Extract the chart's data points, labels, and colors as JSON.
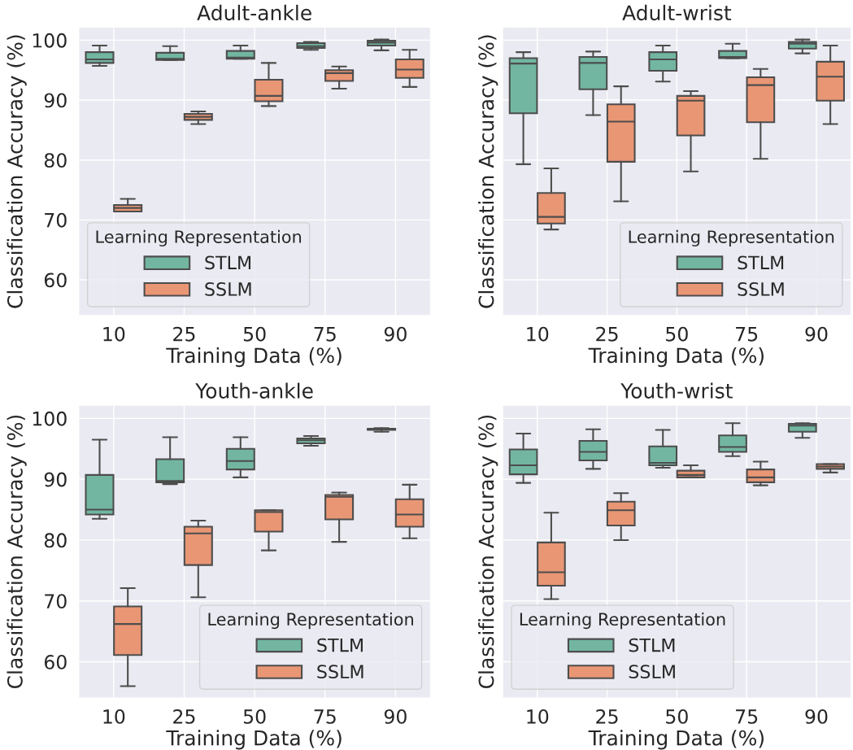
{
  "chart_data": [
    {
      "type": "box",
      "title": "Adult-ankle",
      "xlabel": "Training Data (%)",
      "ylabel": "Classification Accuracy (%)",
      "legend_title": "Learning Representation",
      "legend": "bottom left",
      "grid": true,
      "categories": [
        "10",
        "25",
        "50",
        "75",
        "90"
      ],
      "ylim": [
        54,
        102.2
      ],
      "yticks": [
        60,
        70,
        80,
        90,
        100
      ],
      "series": [
        {
          "name": "STLM",
          "color": "#72b6a1",
          "boxes": [
            {
              "low": 95.7,
              "q1": 96.2,
              "median": 96.8,
              "q3": 98.0,
              "high": 99.1
            },
            {
              "low": 96.7,
              "q1": 96.7,
              "median": 96.9,
              "q3": 97.9,
              "high": 99.0
            },
            {
              "low": 96.9,
              "q1": 96.9,
              "median": 97.1,
              "q3": 98.2,
              "high": 99.1
            },
            {
              "low": 98.4,
              "q1": 98.7,
              "median": 99.0,
              "q3": 99.5,
              "high": 99.7
            },
            {
              "low": 98.3,
              "q1": 99.1,
              "median": 99.6,
              "q3": 99.9,
              "high": 100.1
            }
          ]
        },
        {
          "name": "SSLM",
          "color": "#e99675",
          "boxes": [
            {
              "low": 71.4,
              "q1": 71.4,
              "median": 72.0,
              "q3": 72.5,
              "high": 73.5
            },
            {
              "low": 86.0,
              "q1": 86.7,
              "median": 87.2,
              "q3": 87.7,
              "high": 88.1
            },
            {
              "low": 89.0,
              "q1": 89.8,
              "median": 90.7,
              "q3": 93.4,
              "high": 96.2
            },
            {
              "low": 91.9,
              "q1": 93.2,
              "median": 94.5,
              "q3": 95.0,
              "high": 95.6
            },
            {
              "low": 92.2,
              "q1": 93.7,
              "median": 95.1,
              "q3": 96.8,
              "high": 98.4
            }
          ]
        }
      ]
    },
    {
      "type": "box",
      "title": "Adult-wrist",
      "xlabel": "Training Data (%)",
      "ylabel": "Classification Accuracy (%)",
      "legend_title": "Learning Representation",
      "legend": "bottom right",
      "grid": true,
      "tick_labels": "x",
      "categories": [
        "10",
        "25",
        "50",
        "75",
        "90"
      ],
      "ylim": [
        54,
        102.2
      ],
      "yticks": [
        60,
        70,
        80,
        90,
        100
      ],
      "series": [
        {
          "name": "STLM",
          "color": "#72b6a1",
          "boxes": [
            {
              "low": 79.3,
              "q1": 87.8,
              "median": 96.1,
              "q3": 97.0,
              "high": 98.0
            },
            {
              "low": 87.5,
              "q1": 91.8,
              "median": 96.2,
              "q3": 97.2,
              "high": 98.1
            },
            {
              "low": 93.1,
              "q1": 94.9,
              "median": 96.8,
              "q3": 98.0,
              "high": 99.1
            },
            {
              "low": 97.0,
              "q1": 97.0,
              "median": 97.2,
              "q3": 98.2,
              "high": 99.4
            },
            {
              "low": 97.8,
              "q1": 98.6,
              "median": 99.4,
              "q3": 99.7,
              "high": 100.1
            }
          ]
        },
        {
          "name": "SSLM",
          "color": "#e99675",
          "boxes": [
            {
              "low": 68.4,
              "q1": 69.4,
              "median": 70.5,
              "q3": 74.5,
              "high": 78.6
            },
            {
              "low": 73.1,
              "q1": 79.7,
              "median": 86.4,
              "q3": 89.3,
              "high": 92.3
            },
            {
              "low": 78.1,
              "q1": 84.1,
              "median": 89.9,
              "q3": 90.7,
              "high": 91.5
            },
            {
              "low": 80.2,
              "q1": 86.3,
              "median": 92.5,
              "q3": 93.8,
              "high": 95.2
            },
            {
              "low": 86.0,
              "q1": 89.9,
              "median": 93.9,
              "q3": 96.4,
              "high": 99.1
            }
          ]
        }
      ]
    },
    {
      "type": "box",
      "title": "Youth-ankle",
      "xlabel": "Training Data (%)",
      "ylabel": "Classification Accuracy (%)",
      "legend_title": "Learning Representation",
      "legend": "bottom right",
      "grid": true,
      "categories": [
        "10",
        "25",
        "50",
        "75",
        "90"
      ],
      "ylim": [
        54,
        102.2
      ],
      "yticks": [
        60,
        70,
        80,
        90,
        100
      ],
      "series": [
        {
          "name": "STLM",
          "color": "#72b6a1",
          "boxes": [
            {
              "low": 83.5,
              "q1": 84.2,
              "median": 85.0,
              "q3": 90.7,
              "high": 96.5
            },
            {
              "low": 89.2,
              "q1": 89.5,
              "median": 89.7,
              "q3": 93.3,
              "high": 96.9
            },
            {
              "low": 90.3,
              "q1": 91.6,
              "median": 93.0,
              "q3": 95.0,
              "high": 96.9
            },
            {
              "low": 95.5,
              "q1": 95.9,
              "median": 96.4,
              "q3": 96.7,
              "high": 97.1
            },
            {
              "low": 97.8,
              "q1": 98.1,
              "median": 98.2,
              "q3": 98.3,
              "high": 98.4
            }
          ]
        },
        {
          "name": "SSLM",
          "color": "#e99675",
          "boxes": [
            {
              "low": 56.0,
              "q1": 61.1,
              "median": 66.2,
              "q3": 69.1,
              "high": 72.1
            },
            {
              "low": 70.6,
              "q1": 75.9,
              "median": 81.1,
              "q3": 82.2,
              "high": 83.2
            },
            {
              "low": 78.3,
              "q1": 81.4,
              "median": 84.6,
              "q3": 84.9,
              "high": 84.9
            },
            {
              "low": 79.7,
              "q1": 83.4,
              "median": 87.1,
              "q3": 87.4,
              "high": 87.8
            },
            {
              "low": 80.3,
              "q1": 82.2,
              "median": 84.2,
              "q3": 86.7,
              "high": 89.1
            }
          ]
        }
      ]
    },
    {
      "type": "box",
      "title": "Youth-wrist",
      "xlabel": "Training Data (%)",
      "ylabel": "Classification Accuracy (%)",
      "legend_title": "Learning Representation",
      "legend": "bottom left",
      "grid": true,
      "tick_labels": "x",
      "categories": [
        "10",
        "25",
        "50",
        "75",
        "90"
      ],
      "ylim": [
        54,
        102.2
      ],
      "yticks": [
        60,
        70,
        80,
        90,
        100
      ],
      "series": [
        {
          "name": "STLM",
          "color": "#72b6a1",
          "boxes": [
            {
              "low": 89.4,
              "q1": 90.8,
              "median": 92.3,
              "q3": 94.9,
              "high": 97.5
            },
            {
              "low": 91.7,
              "q1": 93.1,
              "median": 94.5,
              "q3": 96.3,
              "high": 98.2
            },
            {
              "low": 91.9,
              "q1": 92.3,
              "median": 92.7,
              "q3": 95.4,
              "high": 98.1
            },
            {
              "low": 93.8,
              "q1": 94.5,
              "median": 95.3,
              "q3": 97.2,
              "high": 99.2
            },
            {
              "low": 96.8,
              "q1": 97.8,
              "median": 98.8,
              "q3": 99.1,
              "high": 99.2
            }
          ]
        },
        {
          "name": "SSLM",
          "color": "#e99675",
          "boxes": [
            {
              "low": 70.3,
              "q1": 72.5,
              "median": 74.7,
              "q3": 79.6,
              "high": 84.5
            },
            {
              "low": 80.0,
              "q1": 82.4,
              "median": 84.9,
              "q3": 86.3,
              "high": 87.7
            },
            {
              "low": 90.3,
              "q1": 90.3,
              "median": 90.7,
              "q3": 91.4,
              "high": 92.3
            },
            {
              "low": 89.0,
              "q1": 89.5,
              "median": 90.3,
              "q3": 91.6,
              "high": 92.9
            },
            {
              "low": 91.1,
              "q1": 91.7,
              "median": 92.1,
              "q3": 92.5,
              "high": 92.5
            }
          ]
        }
      ]
    }
  ]
}
